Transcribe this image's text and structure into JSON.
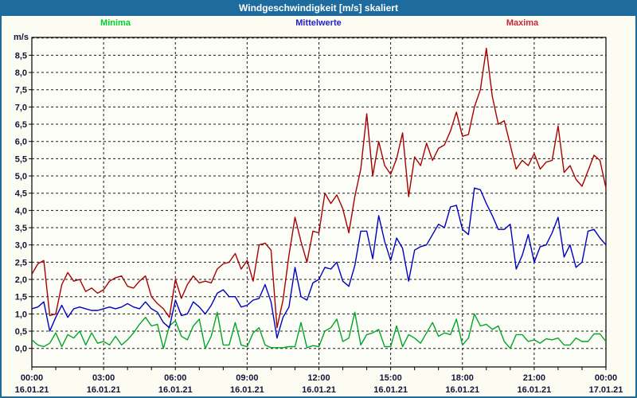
{
  "window": {
    "title": "Windgeschwindigkeit [m/s] skaliert"
  },
  "legend": {
    "items": [
      {
        "label": "Minima",
        "color": "#00CE2E"
      },
      {
        "label": "Mittelwerte",
        "color": "#2222CC"
      },
      {
        "label": "Maxima",
        "color": "#C4293B"
      }
    ]
  },
  "chart_data": {
    "type": "line",
    "title": "Windgeschwindigkeit [m/s] skaliert",
    "ylabel": "m/s",
    "ylim": [
      0,
      9
    ],
    "grid": "dashed",
    "legend_position": "top",
    "x_range_hours": [
      0,
      24
    ],
    "x_step_hours": 0.25,
    "y_tick_step": 0.5,
    "y_tick_labels": [
      "0,0",
      "0,5",
      "1,0",
      "1,5",
      "2,0",
      "2,5",
      "3,0",
      "3,5",
      "4,0",
      "4,5",
      "5,0",
      "5,5",
      "6,0",
      "6,5",
      "7,0",
      "7,5",
      "8,0",
      "8,5"
    ],
    "x_ticks": [
      {
        "hour": 0,
        "time": "00:00",
        "date": "16.01.21"
      },
      {
        "hour": 3,
        "time": "03:00",
        "date": "16.01.21"
      },
      {
        "hour": 6,
        "time": "06:00",
        "date": "16.01.21"
      },
      {
        "hour": 9,
        "time": "09:00",
        "date": "16.01.21"
      },
      {
        "hour": 12,
        "time": "12:00",
        "date": "16.01.21"
      },
      {
        "hour": 15,
        "time": "15:00",
        "date": "16.01.21"
      },
      {
        "hour": 18,
        "time": "18:00",
        "date": "16.01.21"
      },
      {
        "hour": 21,
        "time": "21:00",
        "date": "16.01.21"
      },
      {
        "hour": 24,
        "time": "00:00",
        "date": "17.01.21"
      }
    ],
    "series": [
      {
        "name": "Minima",
        "color": "#00A527",
        "values": [
          0.25,
          0.1,
          0.05,
          0.15,
          0.45,
          0.05,
          0.4,
          0.3,
          0.5,
          0.1,
          0.45,
          0.15,
          0.2,
          0.1,
          0.35,
          0.1,
          0.25,
          0.45,
          0.7,
          0.9,
          0.65,
          0.7,
          0.0,
          0.65,
          0.8,
          0.35,
          0.25,
          0.65,
          0.85,
          0.0,
          0.35,
          1.05,
          0.1,
          0.1,
          0.75,
          0.1,
          0.05,
          0.45,
          0.6,
          0.1,
          0.02,
          0.02,
          0.02,
          0.05,
          0.05,
          0.75,
          0.02,
          0.08,
          0.05,
          0.5,
          0.6,
          0.85,
          0.2,
          0.3,
          1.05,
          0.1,
          0.4,
          0.45,
          0.55,
          0.05,
          0.05,
          0.65,
          0.05,
          0.4,
          0.3,
          0.15,
          0.45,
          0.75,
          0.35,
          0.45,
          0.4,
          0.85,
          0.1,
          0.3,
          1.0,
          0.65,
          0.7,
          0.55,
          0.65,
          0.2,
          0.0,
          0.4,
          0.4,
          0.2,
          0.25,
          0.15,
          0.28,
          0.25,
          0.3,
          0.1,
          0.1,
          0.3,
          0.2,
          0.2,
          0.42,
          0.42,
          0.2
        ]
      },
      {
        "name": "Mittelwerte",
        "color": "#0000C0",
        "values": [
          1.15,
          1.2,
          1.35,
          0.5,
          0.9,
          1.25,
          0.9,
          1.15,
          1.2,
          1.15,
          1.1,
          1.1,
          1.15,
          1.2,
          1.15,
          1.2,
          1.3,
          1.2,
          1.15,
          1.35,
          1.15,
          1.05,
          0.75,
          0.6,
          1.4,
          0.95,
          1.0,
          1.35,
          1.2,
          1.0,
          1.25,
          1.6,
          1.7,
          1.5,
          1.5,
          1.2,
          1.25,
          1.4,
          1.45,
          1.85,
          1.35,
          0.3,
          0.9,
          1.2,
          2.35,
          1.5,
          1.4,
          1.9,
          2.0,
          2.35,
          2.3,
          2.5,
          1.95,
          1.8,
          2.4,
          3.4,
          3.4,
          2.6,
          3.85,
          3.1,
          2.55,
          3.2,
          2.9,
          1.95,
          2.85,
          2.95,
          3.0,
          3.3,
          3.6,
          3.5,
          4.1,
          4.15,
          3.45,
          3.3,
          4.65,
          4.6,
          4.2,
          3.85,
          3.45,
          3.45,
          3.6,
          2.3,
          2.7,
          3.3,
          2.5,
          2.95,
          3.0,
          3.35,
          3.8,
          2.65,
          3.0,
          2.35,
          2.5,
          3.4,
          3.45,
          3.2,
          3.0
        ]
      },
      {
        "name": "Maxima",
        "color": "#A60000",
        "values": [
          2.15,
          2.45,
          2.55,
          0.95,
          1.0,
          1.85,
          2.2,
          1.95,
          2.0,
          1.65,
          1.75,
          1.6,
          1.7,
          1.95,
          2.05,
          2.1,
          1.8,
          1.75,
          1.95,
          2.1,
          1.5,
          1.3,
          1.15,
          0.9,
          2.0,
          1.45,
          1.85,
          2.1,
          1.9,
          1.95,
          1.9,
          2.3,
          2.45,
          2.5,
          2.75,
          2.3,
          2.55,
          1.95,
          3.0,
          3.05,
          2.85,
          0.6,
          1.4,
          2.7,
          3.8,
          3.1,
          2.5,
          3.4,
          3.35,
          4.5,
          4.2,
          4.45,
          4.05,
          3.35,
          4.4,
          5.2,
          6.8,
          5.0,
          6.0,
          5.3,
          5.05,
          5.5,
          6.25,
          4.4,
          5.55,
          5.3,
          5.95,
          5.45,
          5.8,
          5.9,
          6.3,
          6.85,
          6.15,
          6.2,
          7.0,
          7.5,
          8.7,
          7.3,
          6.5,
          6.6,
          5.9,
          5.2,
          5.45,
          5.3,
          5.65,
          5.2,
          5.4,
          5.45,
          6.45,
          5.1,
          5.3,
          4.9,
          4.7,
          5.15,
          5.6,
          5.45,
          4.65
        ]
      }
    ]
  }
}
